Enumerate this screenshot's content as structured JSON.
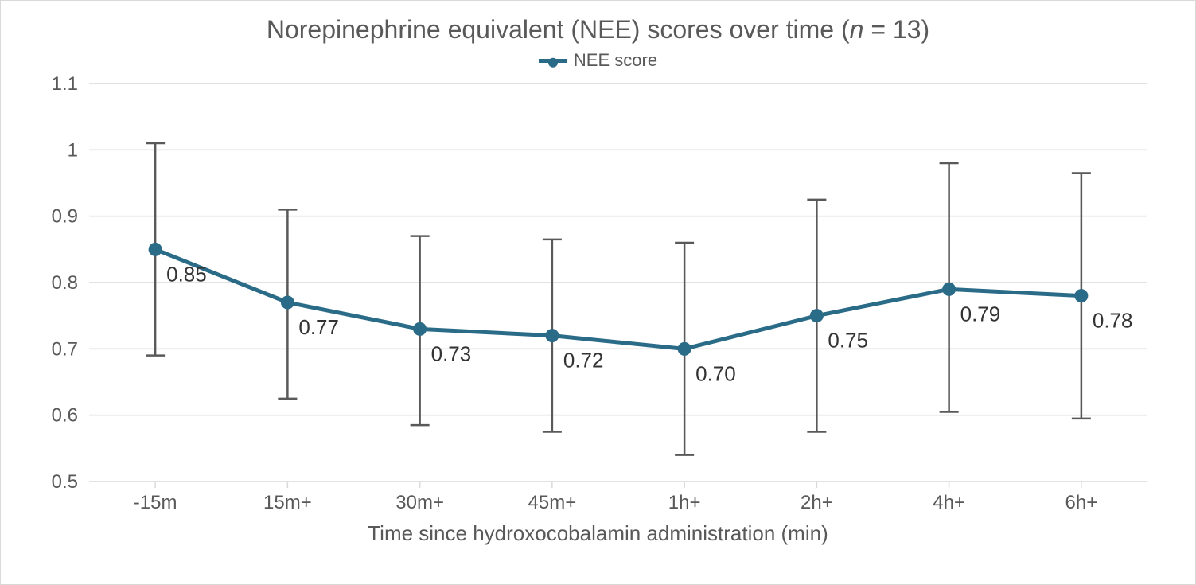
{
  "chart": {
    "type": "line-with-errorbars",
    "title_prefix": "Norepinephrine equivalent (NEE) scores over time (",
    "title_italic": "n",
    "title_suffix": " = 13)",
    "legend_label": "NEE score",
    "xaxis_title": "Time since hydroxocobalamin administration (min)",
    "series_color": "#2a6b87",
    "grid_color": "#d9d9d9",
    "background_color": "#ffffff",
    "text_color": "#595959",
    "label_color": "#333333",
    "line_width": 5,
    "marker_radius": 8,
    "errorbar_color": "#595959",
    "errorbar_cap_halfwidth": 12,
    "title_fontsize": 32,
    "legend_fontsize": 22,
    "tick_fontsize": 24,
    "axis_title_fontsize": 26,
    "data_label_fontsize": 26,
    "ylim": [
      0.5,
      1.1
    ],
    "yticks": [
      0.5,
      0.6,
      0.7,
      0.8,
      0.9,
      1,
      1.1
    ],
    "ytick_labels": [
      "0.5",
      "0.6",
      "0.7",
      "0.8",
      "0.9",
      "1",
      "1.1"
    ],
    "categories": [
      "-15m",
      "15m+",
      "30m+",
      "45m+",
      "1h+",
      "2h+",
      "4h+",
      "6h+"
    ],
    "values": [
      0.85,
      0.77,
      0.73,
      0.72,
      0.7,
      0.75,
      0.79,
      0.78
    ],
    "value_labels": [
      "0.85",
      "0.77",
      "0.73",
      "0.72",
      "0.70",
      "0.75",
      "0.79",
      "0.78"
    ],
    "err_upper": [
      1.01,
      0.91,
      0.87,
      0.865,
      0.86,
      0.925,
      0.98,
      0.965
    ],
    "err_lower": [
      0.69,
      0.625,
      0.585,
      0.575,
      0.54,
      0.575,
      0.605,
      0.595
    ]
  }
}
